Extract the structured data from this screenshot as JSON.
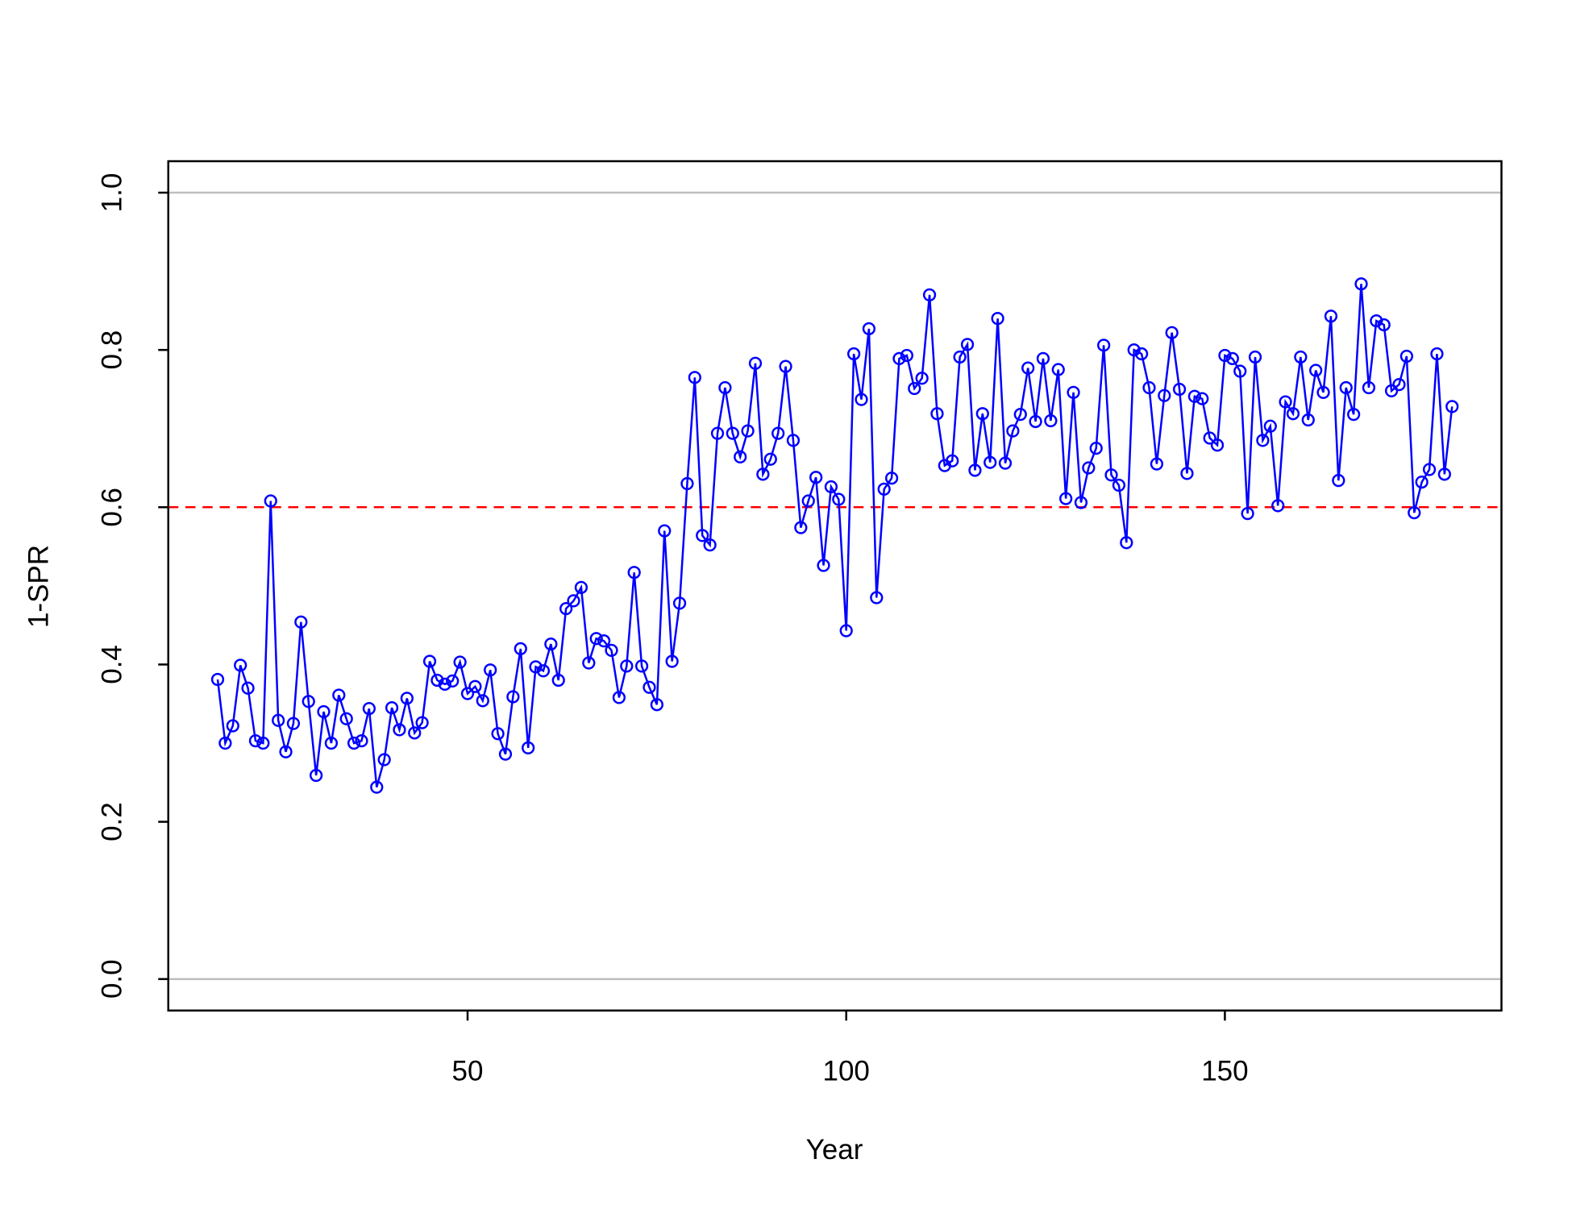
{
  "chart_data": {
    "type": "line",
    "xlabel": "Year",
    "ylabel": "1-SPR",
    "x": [
      17,
      18,
      19,
      20,
      21,
      22,
      23,
      24,
      25,
      26,
      27,
      28,
      29,
      30,
      31,
      32,
      33,
      34,
      35,
      36,
      37,
      38,
      39,
      40,
      41,
      42,
      43,
      44,
      45,
      46,
      47,
      48,
      49,
      50,
      51,
      52,
      53,
      54,
      55,
      56,
      57,
      58,
      59,
      60,
      61,
      62,
      63,
      64,
      65,
      66,
      67,
      68,
      69,
      70,
      71,
      72,
      73,
      74,
      75,
      76,
      77,
      78,
      79,
      80,
      81,
      82,
      83,
      84,
      85,
      86,
      87,
      88,
      89,
      90,
      91,
      92,
      93,
      94,
      95,
      96,
      97,
      98,
      99,
      100,
      101,
      102,
      103,
      104,
      105,
      106,
      107,
      108,
      109,
      110,
      111,
      112,
      113,
      114,
      115,
      116,
      117,
      118,
      119,
      120,
      121,
      122,
      123,
      124,
      125,
      126,
      127,
      128,
      129,
      130,
      131,
      132,
      133,
      134,
      135,
      136,
      137,
      138,
      139,
      140,
      141,
      142,
      143,
      144,
      145,
      146,
      147,
      148,
      149,
      150,
      151,
      152,
      153,
      154,
      155,
      156,
      157,
      158,
      159,
      160,
      161,
      162,
      163,
      164,
      165,
      166,
      167,
      168,
      169,
      170,
      171,
      172,
      173,
      174,
      175,
      176,
      177,
      178,
      179,
      180
    ],
    "series": [
      {
        "color": "#0000ff",
        "values": [
          0.381,
          0.3,
          0.322,
          0.399,
          0.37,
          0.303,
          0.3,
          0.608,
          0.329,
          0.289,
          0.325,
          0.454,
          0.353,
          0.259,
          0.34,
          0.3,
          0.361,
          0.331,
          0.3,
          0.303,
          0.344,
          0.244,
          0.279,
          0.345,
          0.317,
          0.357,
          0.313,
          0.326,
          0.404,
          0.38,
          0.375,
          0.379,
          0.403,
          0.363,
          0.372,
          0.354,
          0.393,
          0.312,
          0.286,
          0.359,
          0.42,
          0.294,
          0.397,
          0.392,
          0.426,
          0.38,
          0.471,
          0.481,
          0.498,
          0.402,
          0.433,
          0.43,
          0.418,
          0.358,
          0.398,
          0.517,
          0.398,
          0.371,
          0.349,
          0.57,
          0.404,
          0.478,
          0.63,
          0.765,
          0.564,
          0.552,
          0.694,
          0.752,
          0.694,
          0.664,
          0.697,
          0.783,
          0.642,
          0.661,
          0.694,
          0.779,
          0.685,
          0.574,
          0.608,
          0.638,
          0.526,
          0.626,
          0.61,
          0.443,
          0.795,
          0.737,
          0.827,
          0.485,
          0.623,
          0.637,
          0.789,
          0.793,
          0.751,
          0.764,
          0.87,
          0.719,
          0.653,
          0.659,
          0.791,
          0.807,
          0.647,
          0.719,
          0.657,
          0.84,
          0.656,
          0.697,
          0.718,
          0.777,
          0.709,
          0.789,
          0.71,
          0.775,
          0.611,
          0.746,
          0.606,
          0.65,
          0.675,
          0.806,
          0.641,
          0.628,
          0.555,
          0.8,
          0.795,
          0.752,
          0.655,
          0.742,
          0.822,
          0.75,
          0.643,
          0.741,
          0.738,
          0.688,
          0.679,
          0.793,
          0.789,
          0.773,
          0.592,
          0.791,
          0.685,
          0.703,
          0.602,
          0.734,
          0.719,
          0.791,
          0.711,
          0.774,
          0.746,
          0.843,
          0.634,
          0.752,
          0.718,
          0.884,
          0.752,
          0.837,
          0.832,
          0.748,
          0.756,
          0.792,
          0.593,
          0.632,
          0.648,
          0.795,
          0.642,
          0.728
        ]
      }
    ],
    "xlim": [
      10.48,
      186.52
    ],
    "xticks": [
      50,
      100,
      150
    ],
    "ylim": [
      -0.04,
      1.04
    ],
    "yticks": [
      {
        "value": 0,
        "label": "0.0"
      },
      0.2,
      0.4,
      0.6,
      0.8,
      {
        "value": 1,
        "label": "1.0"
      }
    ],
    "hlines": [
      {
        "value": 0,
        "color": "#bebebe"
      },
      {
        "value": 1,
        "color": "#bebebe"
      },
      {
        "value": 0.6,
        "color": "#ff0000",
        "dashed": true
      }
    ]
  }
}
